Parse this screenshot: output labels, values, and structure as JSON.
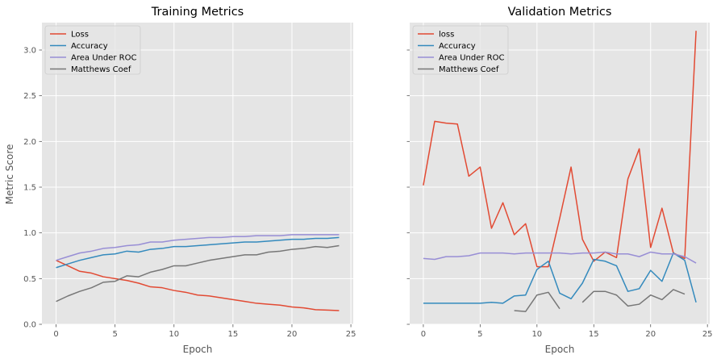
{
  "figure": {
    "ylabel": "Metric Score"
  },
  "chart_data": [
    {
      "type": "line",
      "title": "Training Metrics",
      "xlabel": "Epoch",
      "ylabel": "Metric Score",
      "xlim": [
        -1.2,
        25.2
      ],
      "ylim": [
        0,
        3.3
      ],
      "xticks": [
        0,
        5,
        10,
        15,
        20,
        25
      ],
      "yticks": [
        0.0,
        0.5,
        1.0,
        1.5,
        2.0,
        2.5,
        3.0
      ],
      "grid": true,
      "legend": "top-left",
      "x": [
        0,
        1,
        2,
        3,
        4,
        5,
        6,
        7,
        8,
        9,
        10,
        11,
        12,
        13,
        14,
        15,
        16,
        17,
        18,
        19,
        20,
        21,
        22,
        23,
        24
      ],
      "series": [
        {
          "name": "Loss",
          "color": "#E24A33",
          "values": [
            0.7,
            0.64,
            0.58,
            0.56,
            0.52,
            0.5,
            0.48,
            0.45,
            0.41,
            0.4,
            0.37,
            0.35,
            0.32,
            0.31,
            0.29,
            0.27,
            0.25,
            0.23,
            0.22,
            0.21,
            0.19,
            0.18,
            0.16,
            0.155,
            0.15
          ]
        },
        {
          "name": "Accuracy",
          "color": "#348ABD",
          "values": [
            0.62,
            0.66,
            0.7,
            0.73,
            0.76,
            0.77,
            0.8,
            0.79,
            0.82,
            0.83,
            0.85,
            0.85,
            0.86,
            0.87,
            0.88,
            0.89,
            0.9,
            0.9,
            0.91,
            0.92,
            0.93,
            0.93,
            0.94,
            0.94,
            0.95
          ]
        },
        {
          "name": "Area Under ROC",
          "color": "#988ED5",
          "values": [
            0.7,
            0.74,
            0.78,
            0.8,
            0.83,
            0.84,
            0.86,
            0.87,
            0.9,
            0.9,
            0.92,
            0.93,
            0.94,
            0.95,
            0.95,
            0.96,
            0.96,
            0.97,
            0.97,
            0.97,
            0.98,
            0.98,
            0.98,
            0.98,
            0.98
          ]
        },
        {
          "name": "Matthews Coef",
          "color": "#777777",
          "values": [
            0.25,
            0.31,
            0.36,
            0.4,
            0.46,
            0.47,
            0.53,
            0.52,
            0.57,
            0.6,
            0.64,
            0.64,
            0.67,
            0.7,
            0.72,
            0.74,
            0.76,
            0.76,
            0.79,
            0.8,
            0.82,
            0.83,
            0.85,
            0.84,
            0.86
          ]
        }
      ]
    },
    {
      "type": "line",
      "title": "Validation Metrics",
      "xlabel": "Epoch",
      "ylabel": "",
      "xlim": [
        -1.2,
        25.2
      ],
      "ylim": [
        0,
        3.3
      ],
      "xticks": [
        0,
        5,
        10,
        15,
        20,
        25
      ],
      "yticks": [
        0.0,
        0.5,
        1.0,
        1.5,
        2.0,
        2.5,
        3.0
      ],
      "grid": true,
      "legend": "top-left",
      "x": [
        0,
        1,
        2,
        3,
        4,
        5,
        6,
        7,
        8,
        9,
        10,
        11,
        12,
        13,
        14,
        15,
        16,
        17,
        18,
        19,
        20,
        21,
        22,
        23,
        24
      ],
      "series": [
        {
          "name": "loss",
          "color": "#E24A33",
          "values": [
            1.52,
            2.22,
            2.2,
            2.19,
            1.62,
            1.72,
            1.05,
            1.33,
            0.98,
            1.1,
            0.63,
            0.63,
            1.16,
            1.72,
            0.93,
            0.69,
            0.79,
            0.73,
            1.59,
            1.92,
            0.84,
            1.27,
            0.78,
            0.72,
            3.21
          ]
        },
        {
          "name": "Accuracy",
          "color": "#348ABD",
          "values": [
            0.23,
            0.23,
            0.23,
            0.23,
            0.23,
            0.23,
            0.24,
            0.23,
            0.31,
            0.32,
            0.6,
            0.69,
            0.34,
            0.28,
            0.45,
            0.71,
            0.69,
            0.64,
            0.36,
            0.39,
            0.59,
            0.47,
            0.78,
            0.7,
            0.24
          ]
        },
        {
          "name": "Area Under ROC",
          "color": "#988ED5",
          "values": [
            0.72,
            0.71,
            0.74,
            0.74,
            0.75,
            0.78,
            0.78,
            0.78,
            0.77,
            0.78,
            0.78,
            0.78,
            0.78,
            0.77,
            0.78,
            0.78,
            0.79,
            0.77,
            0.77,
            0.74,
            0.79,
            0.77,
            0.77,
            0.74,
            0.67
          ]
        },
        {
          "name": "Matthews Coef",
          "color": "#777777",
          "values": [
            null,
            null,
            null,
            null,
            null,
            null,
            null,
            null,
            0.15,
            0.14,
            0.32,
            0.35,
            0.17,
            null,
            0.24,
            0.36,
            0.36,
            0.32,
            0.2,
            0.22,
            0.32,
            0.27,
            0.38,
            0.33,
            null
          ]
        }
      ]
    }
  ]
}
